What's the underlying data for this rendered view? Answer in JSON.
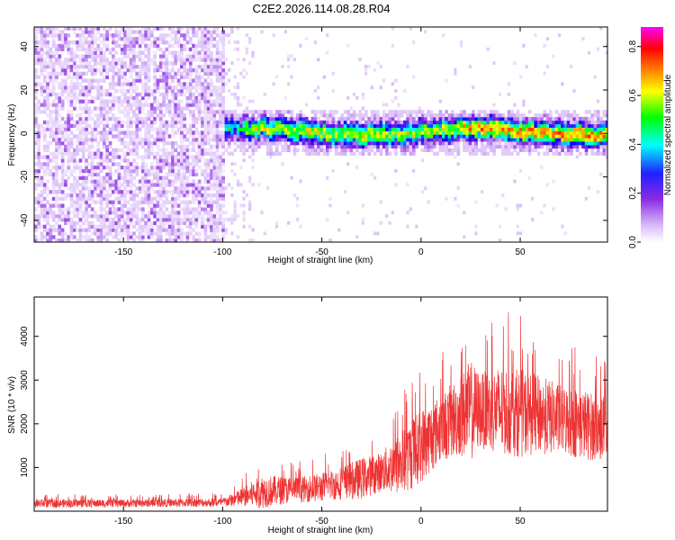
{
  "chart_data": [
    {
      "type": "heatmap",
      "title": "C2E2.2026.114.08.28.R04",
      "xlabel": "Height of straight line (km)",
      "ylabel": "Frequency (Hz)",
      "xlim": [
        -195,
        94
      ],
      "ylim": [
        -50,
        49
      ],
      "xticks": [
        "-150",
        "-100",
        "-50",
        "0",
        "50"
      ],
      "xtick_values": [
        -150,
        -100,
        -50,
        0,
        50
      ],
      "yticks": [
        "-40",
        "-20",
        "0",
        "20",
        "40"
      ],
      "ytick_values": [
        -40,
        -20,
        0,
        20,
        40
      ],
      "colorbar": {
        "label": "Normalized spectral amplitude",
        "range": [
          0.0,
          0.88
        ],
        "ticks": [
          "0.0",
          "0.2",
          "0.4",
          "0.6",
          "0.8"
        ],
        "tick_values": [
          0.0,
          0.2,
          0.4,
          0.6,
          0.8
        ],
        "colormap": [
          "#ffffff",
          "#d6b6f8",
          "#8a2be2",
          "#0000ff",
          "#00ffff",
          "#00ff00",
          "#ffff00",
          "#ff8000",
          "#ff0000",
          "#ff00ff"
        ]
      },
      "description_regions": [
        {
          "x_range": [
            -195,
            -100
          ],
          "frequency_range": [
            -50,
            49
          ],
          "amplitude": "low broadband noise (0.05-0.2)"
        },
        {
          "x_range": [
            -100,
            94
          ],
          "frequency_range": [
            -8,
            8
          ],
          "amplitude": "coherent band centered near 0 Hz, 0.2-0.8"
        }
      ]
    },
    {
      "type": "line",
      "title": "",
      "xlabel": "Height of straight line (km)",
      "ylabel": "SNR (10 * v/v)",
      "xlim": [
        -195,
        94
      ],
      "ylim": [
        0,
        4900
      ],
      "xticks": [
        "-150",
        "-100",
        "-50",
        "0",
        "50"
      ],
      "xtick_values": [
        -150,
        -100,
        -50,
        0,
        50
      ],
      "yticks": [
        "1000",
        "2000",
        "3000",
        "4000"
      ],
      "ytick_values": [
        1000,
        2000,
        3000,
        4000
      ],
      "series": [
        {
          "name": "SNR",
          "color": "#ee3333",
          "envelope_x": [
            -195,
            -150,
            -100,
            -90,
            -80,
            -70,
            -60,
            -50,
            -40,
            -30,
            -20,
            -10,
            0,
            10,
            20,
            25,
            30,
            40,
            50,
            60,
            70,
            80,
            90,
            94
          ],
          "envelope_mean": [
            180,
            180,
            200,
            320,
            450,
            480,
            500,
            550,
            650,
            750,
            900,
            1100,
            1500,
            1900,
            2200,
            2300,
            2300,
            2300,
            2250,
            2200,
            2100,
            2000,
            1900,
            1900
          ],
          "envelope_max": [
            400,
            380,
            420,
            800,
            1300,
            1200,
            1150,
            1300,
            1500,
            1800,
            1900,
            2800,
            3400,
            3600,
            4300,
            4900,
            4200,
            4600,
            4500,
            4200,
            3900,
            3800,
            3600,
            3500
          ]
        }
      ]
    }
  ]
}
